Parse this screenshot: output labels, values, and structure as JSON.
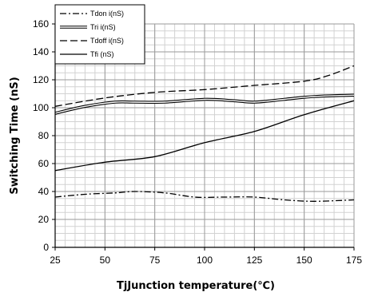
{
  "chart_data": {
    "type": "line",
    "xlabel": "TjJunction temperature(℃)",
    "ylabel": "Switching Time (nS)",
    "xlim": [
      25,
      175
    ],
    "ylim": [
      0,
      160
    ],
    "x_ticks": [
      25,
      50,
      75,
      100,
      125,
      150,
      175
    ],
    "y_ticks": [
      0,
      20,
      40,
      60,
      80,
      100,
      120,
      140,
      160
    ],
    "grid": true,
    "legend_position": "top-left",
    "series": [
      {
        "name": "Tdon i(nS)",
        "style": "dash-dot",
        "color": "#000000",
        "points": [
          [
            25,
            36
          ],
          [
            40,
            38
          ],
          [
            55,
            39
          ],
          [
            65,
            40
          ],
          [
            80,
            39
          ],
          [
            95,
            36
          ],
          [
            110,
            36
          ],
          [
            125,
            36
          ],
          [
            140,
            34
          ],
          [
            155,
            33
          ],
          [
            175,
            34
          ]
        ]
      },
      {
        "name": "Tri i(nS)",
        "style": "double",
        "color": "#000000",
        "points": [
          [
            25,
            96
          ],
          [
            40,
            101
          ],
          [
            55,
            104
          ],
          [
            65,
            104
          ],
          [
            80,
            104
          ],
          [
            100,
            106
          ],
          [
            115,
            105
          ],
          [
            125,
            104
          ],
          [
            140,
            106
          ],
          [
            155,
            108
          ],
          [
            175,
            109
          ]
        ]
      },
      {
        "name": "Tdoff i(nS)",
        "style": "dashed",
        "color": "#000000",
        "points": [
          [
            25,
            101
          ],
          [
            50,
            107
          ],
          [
            75,
            111
          ],
          [
            100,
            113
          ],
          [
            125,
            116
          ],
          [
            150,
            119
          ],
          [
            162,
            123
          ],
          [
            175,
            130
          ]
        ]
      },
      {
        "name": "Tfi (nS)",
        "style": "solid",
        "color": "#000000",
        "points": [
          [
            25,
            55
          ],
          [
            50,
            61
          ],
          [
            75,
            65
          ],
          [
            100,
            75
          ],
          [
            125,
            83
          ],
          [
            150,
            95
          ],
          [
            175,
            105
          ]
        ]
      }
    ]
  }
}
